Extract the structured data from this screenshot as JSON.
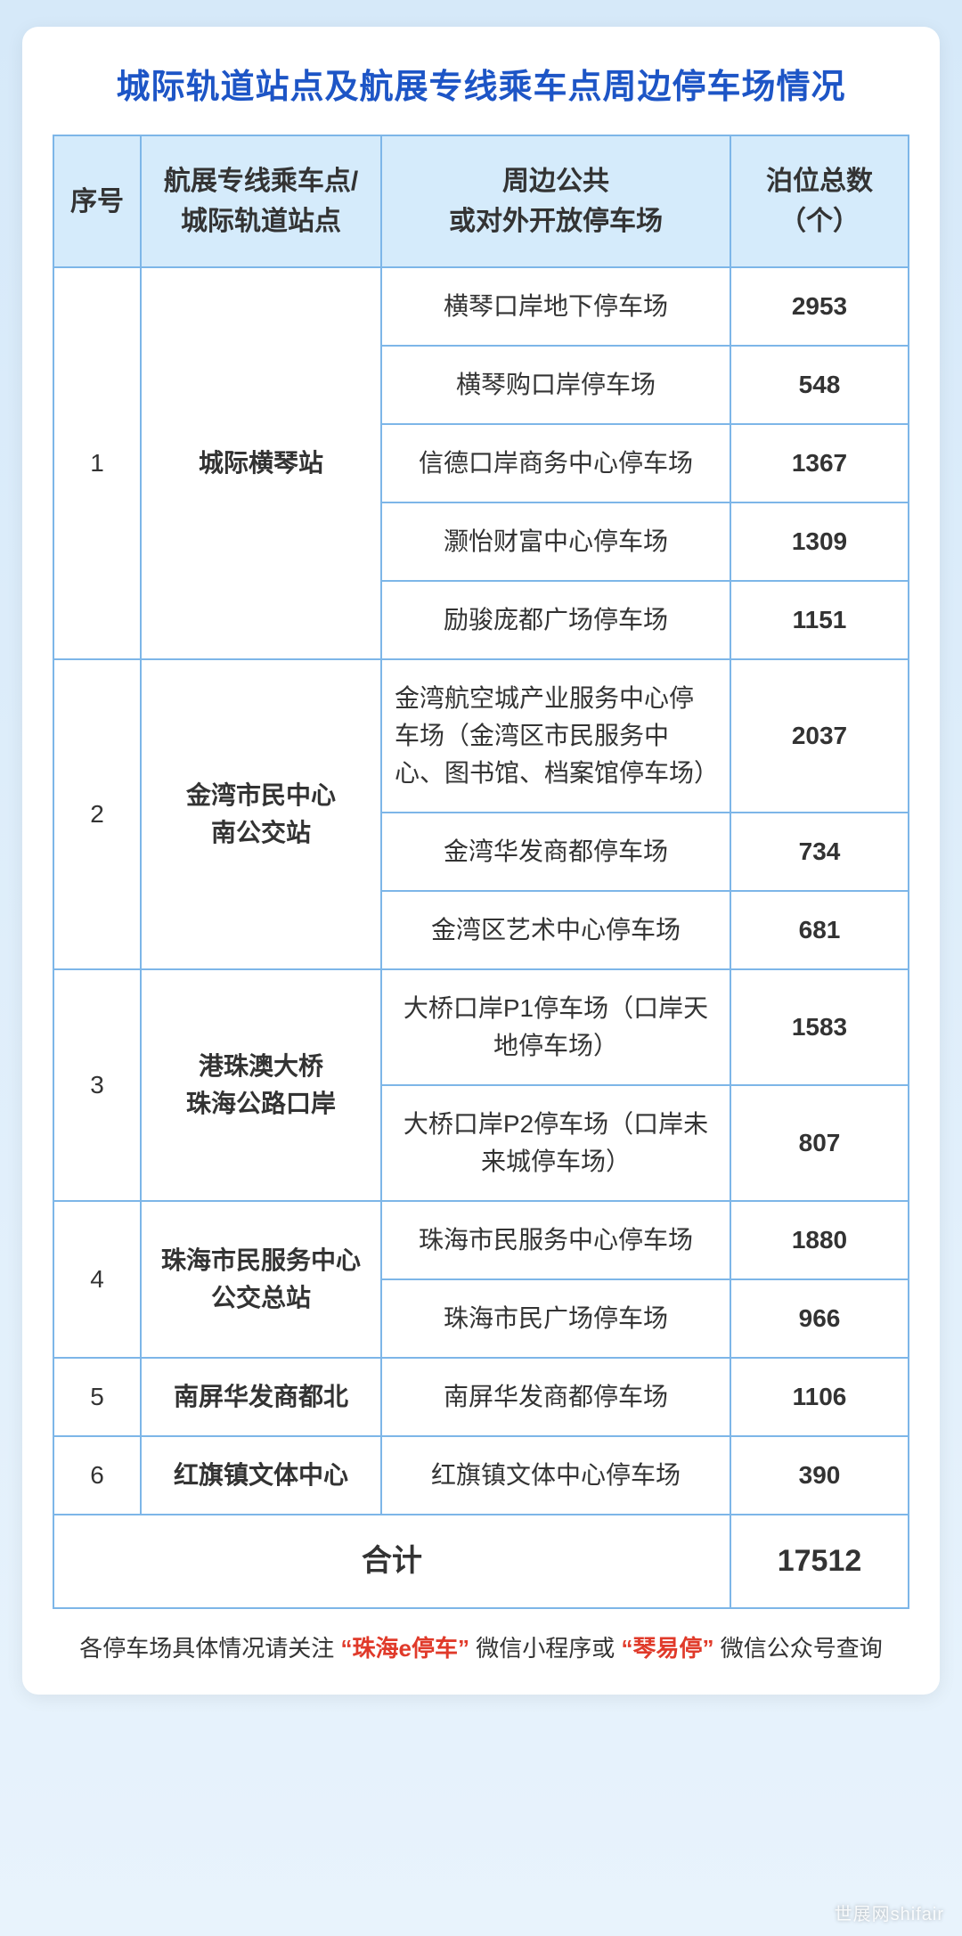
{
  "title": "城际轨道站点及航展专线乘车点周边停车场情况",
  "columns": {
    "idx": "序号",
    "stn_l1": "航展专线乘车点/",
    "stn_l2": "城际轨道站点",
    "lot_l1": "周边公共",
    "lot_l2": "或对外开放停车场",
    "num_l1": "泊位总数",
    "num_l2": "（个）"
  },
  "rows": [
    {
      "idx": "1",
      "station": "城际横琴站",
      "lots": [
        {
          "name": "横琴口岸地下停车场",
          "count": "2953"
        },
        {
          "name": "横琴购口岸停车场",
          "count": "548"
        },
        {
          "name": "信德口岸商务中心停车场",
          "count": "1367"
        },
        {
          "name": "灏怡财富中心停车场",
          "count": "1309"
        },
        {
          "name": "励骏庞都广场停车场",
          "count": "1151"
        }
      ]
    },
    {
      "idx": "2",
      "station": "金湾市民中心\n南公交站",
      "lots": [
        {
          "name": "金湾航空城产业服务中心停车场（金湾区市民服务中心、图书馆、档案馆停车场）",
          "count": "2037",
          "align": "left"
        },
        {
          "name": "金湾华发商都停车场",
          "count": "734"
        },
        {
          "name": "金湾区艺术中心停车场",
          "count": "681"
        }
      ]
    },
    {
      "idx": "3",
      "station": "港珠澳大桥\n珠海公路口岸",
      "lots": [
        {
          "name": "大桥口岸P1停车场（口岸天地停车场）",
          "count": "1583"
        },
        {
          "name": "大桥口岸P2停车场（口岸未来城停车场）",
          "count": "807"
        }
      ]
    },
    {
      "idx": "4",
      "station": "珠海市民服务中心\n公交总站",
      "lots": [
        {
          "name": "珠海市民服务中心停车场",
          "count": "1880"
        },
        {
          "name": "珠海市民广场停车场",
          "count": "966"
        }
      ]
    },
    {
      "idx": "5",
      "station": "南屏华发商都北",
      "lots": [
        {
          "name": "南屏华发商都停车场",
          "count": "1106"
        }
      ]
    },
    {
      "idx": "6",
      "station": "红旗镇文体中心",
      "lots": [
        {
          "name": "红旗镇文体中心停车场",
          "count": "390"
        }
      ]
    }
  ],
  "total": {
    "label": "合计",
    "value": "17512"
  },
  "footer": {
    "t1": "各停车场具体情况请关注",
    "q1": "“珠海e停车”",
    "t2": "微信小程序或",
    "q2": "“琴易停”",
    "t3": "微信公众号查询"
  },
  "watermark": "世展网shifair",
  "colors": {
    "border": "#7db6e8",
    "header_bg": "#d5ebfb",
    "title": "#1d55c6",
    "accent_red": "#e03a2a",
    "page_bg_top": "#d6e9f9",
    "page_bg_bottom": "#e8f3fc"
  }
}
